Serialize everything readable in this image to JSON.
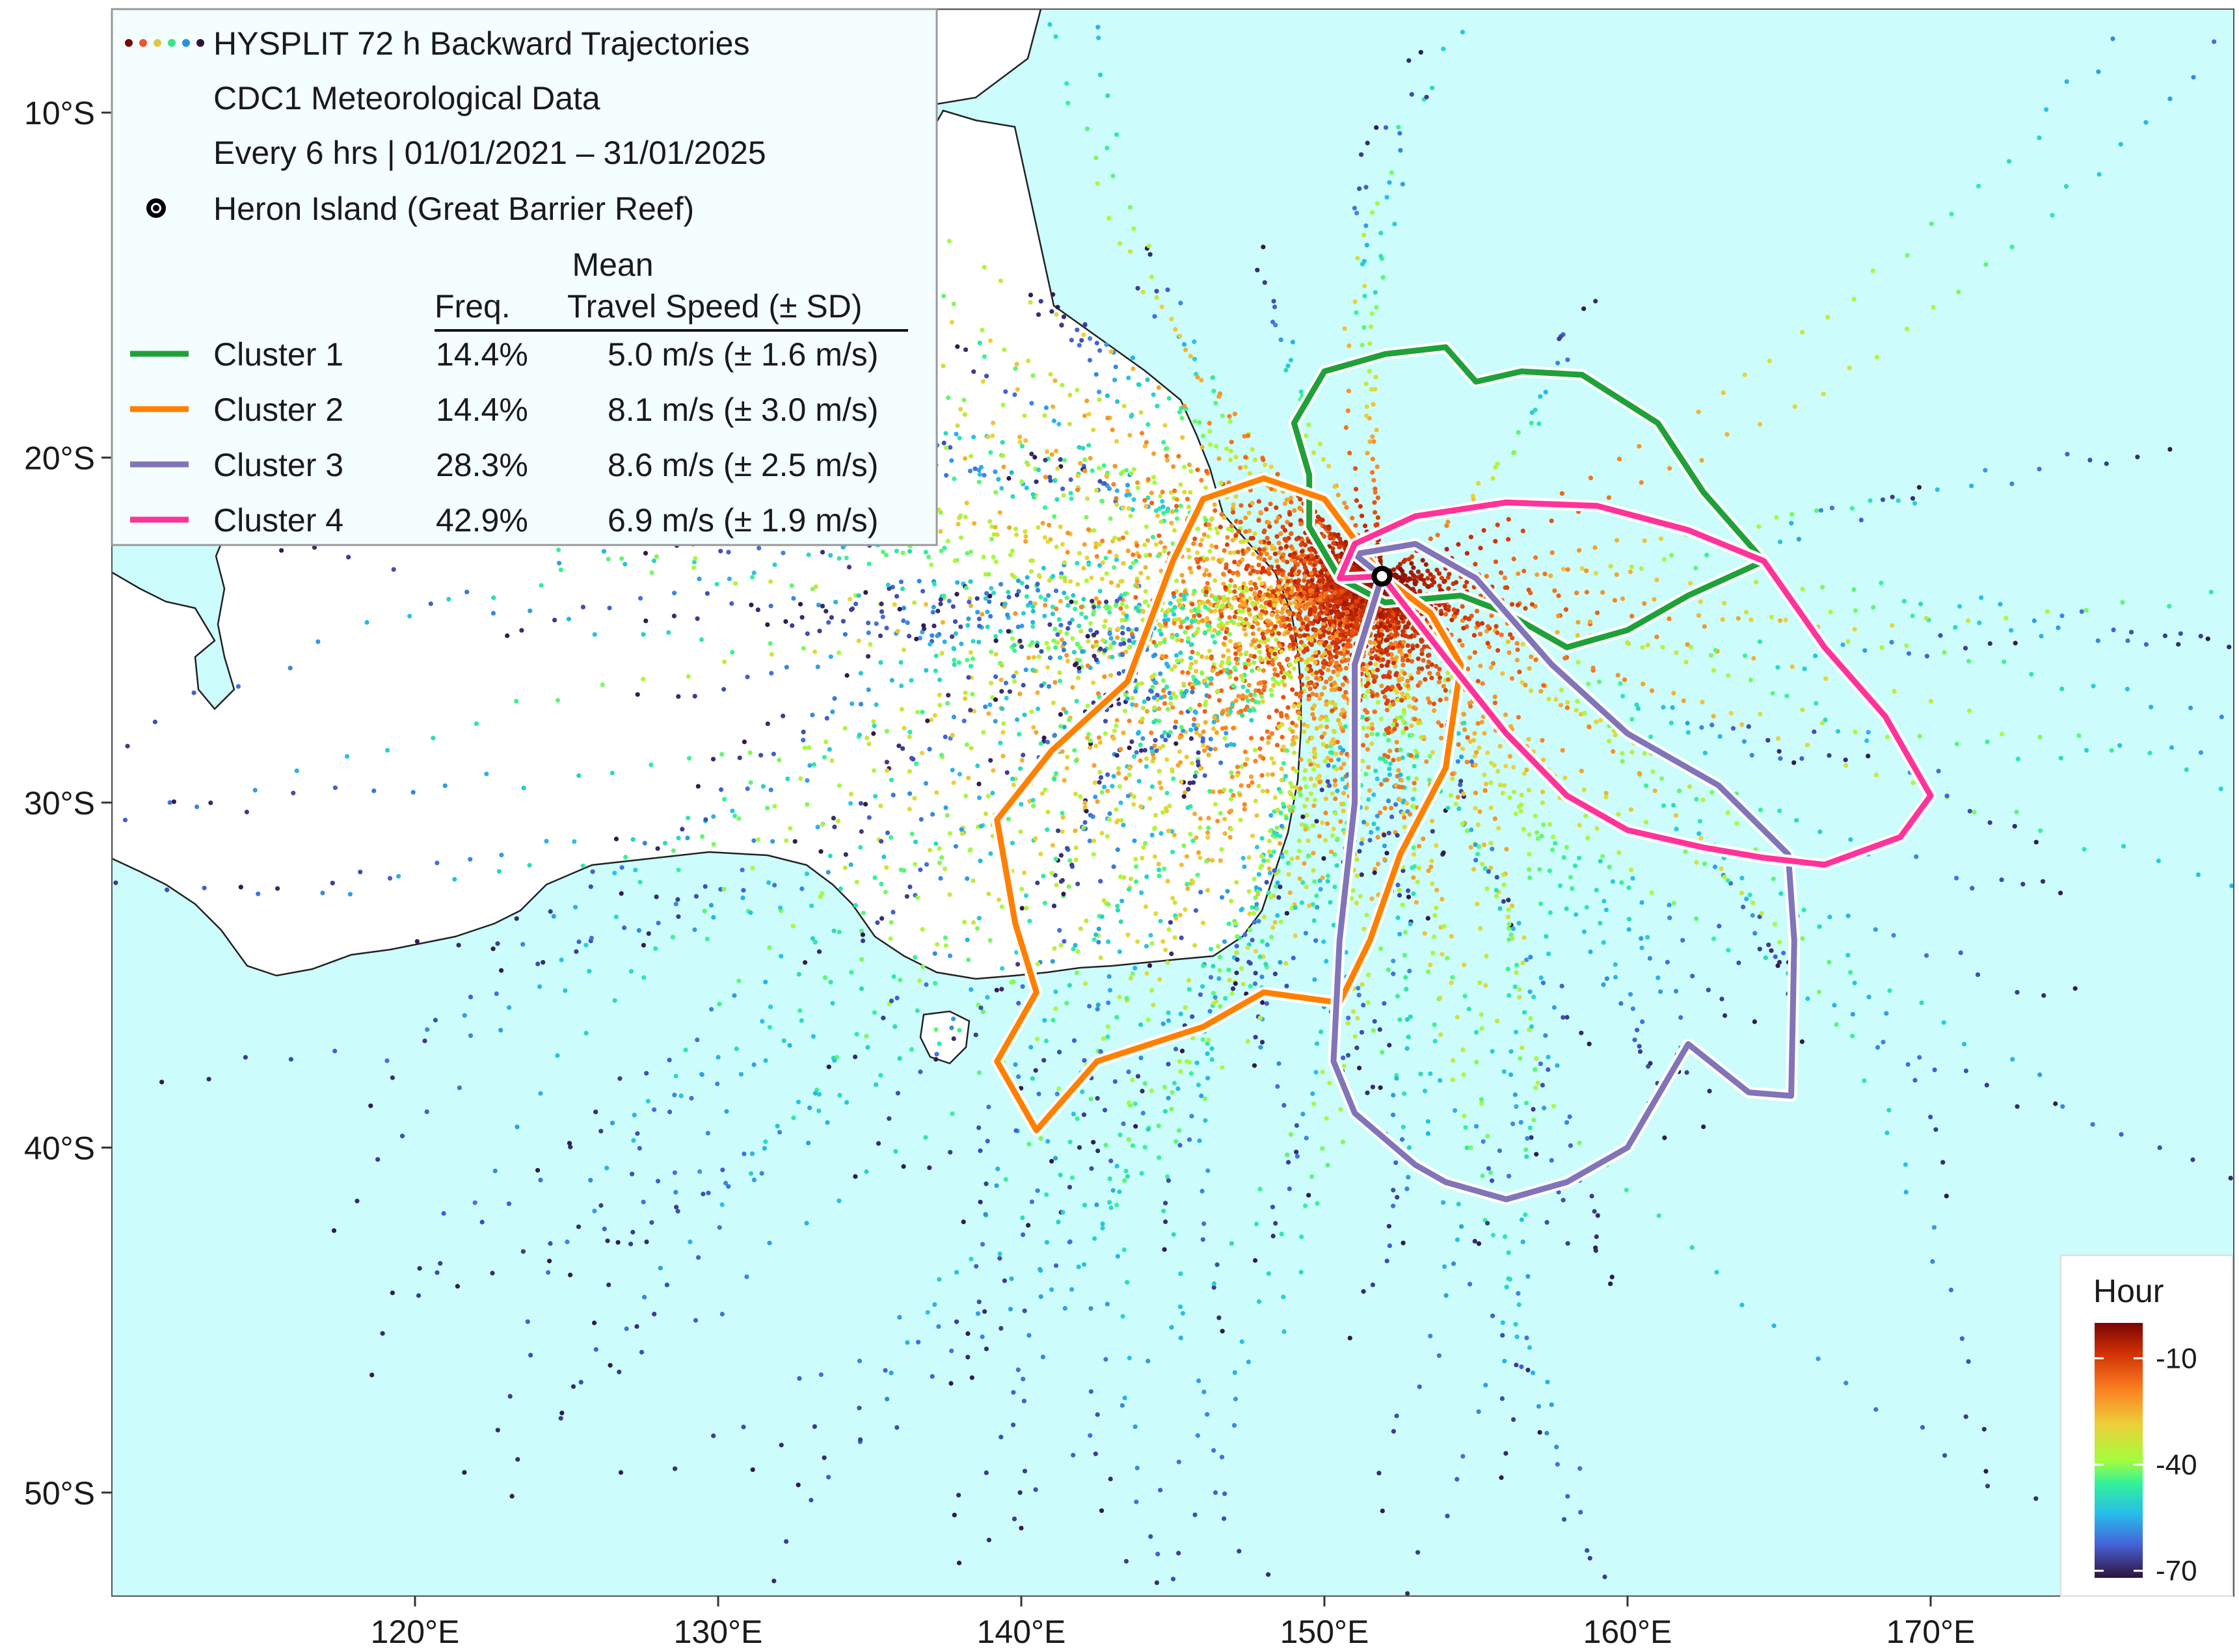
{
  "title": "HYSPLIT 72 h Backward Trajectories",
  "subtitle_1": "CDC1 Meteorological Data",
  "subtitle_2": "Every 6 hrs | 01/01/2021 – 31/01/2025",
  "site_label": "Heron Island (Great Barrier Reef)",
  "site": {
    "lon": 151.9,
    "lat": -23.44
  },
  "table_header": {
    "freq": "Freq.",
    "speed_line1": "Mean",
    "speed_line2": "Travel Speed (± SD)"
  },
  "colors": {
    "ocean": "#ccfcfc",
    "land": "#ffffff",
    "cluster1": "#1fa13a",
    "cluster2": "#ff8000",
    "cluster3": "#8075b8",
    "cluster4": "#ff3399"
  },
  "clusters": [
    {
      "name": "Cluster 1",
      "freq": "14.4%",
      "speed": "5.0 m/s (± 1.6 m/s)",
      "color": "#1fa13a"
    },
    {
      "name": "Cluster 2",
      "freq": "14.4%",
      "speed": "8.1 m/s (± 3.0 m/s)",
      "color": "#ff8000"
    },
    {
      "name": "Cluster 3",
      "freq": "28.3%",
      "speed": "8.6 m/s (± 2.5 m/s)",
      "color": "#8075b8"
    },
    {
      "name": "Cluster 4",
      "freq": "42.9%",
      "speed": "6.9 m/s (± 1.9 m/s)",
      "color": "#ff3399"
    }
  ],
  "colorbar": {
    "title": "Hour",
    "ticks": [
      "-10",
      "-40",
      "-70"
    ],
    "tick_values": [
      -10,
      -40,
      -70
    ],
    "range": [
      -72,
      0
    ]
  },
  "axes": {
    "lon_range": [
      110,
      180
    ],
    "lat_range": [
      -53,
      -7
    ],
    "x_ticks": [
      "120°E",
      "130°E",
      "140°E",
      "150°E",
      "160°E",
      "170°E"
    ],
    "x_tick_values": [
      120,
      130,
      140,
      150,
      160,
      170
    ],
    "y_ticks": [
      "10°S",
      "20°S",
      "30°S",
      "40°S",
      "50°S"
    ],
    "y_tick_values": [
      -10,
      -20,
      -30,
      -40,
      -50
    ]
  },
  "cluster_paths": [
    [
      [
        149,
        -19
      ],
      [
        150,
        -17.5
      ],
      [
        152,
        -17
      ],
      [
        154,
        -16.8
      ],
      [
        155,
        -17.8
      ],
      [
        156.5,
        -17.5
      ],
      [
        158.5,
        -17.6
      ],
      [
        161,
        -19
      ],
      [
        162.5,
        -21
      ],
      [
        164.5,
        -23
      ],
      [
        162,
        -24
      ],
      [
        160,
        -25
      ],
      [
        158,
        -25.5
      ],
      [
        156,
        -24.5
      ],
      [
        154.5,
        -24
      ],
      [
        152,
        -24.2
      ],
      [
        150.5,
        -23.5
      ],
      [
        149.5,
        -22
      ],
      [
        149.5,
        -20.5
      ],
      [
        149,
        -19
      ]
    ],
    [
      [
        151.9,
        -23.44
      ],
      [
        150,
        -21.2
      ],
      [
        148,
        -20.6
      ],
      [
        146,
        -21.2
      ],
      [
        145,
        -23
      ],
      [
        143.5,
        -26.5
      ],
      [
        141,
        -28.5
      ],
      [
        139.2,
        -30.5
      ],
      [
        139.8,
        -33.5
      ],
      [
        140.5,
        -35.5
      ],
      [
        139.2,
        -37.5
      ],
      [
        140.5,
        -39.5
      ],
      [
        142.5,
        -37.5
      ],
      [
        146,
        -36.5
      ],
      [
        148,
        -35.5
      ],
      [
        150.5,
        -35.8
      ],
      [
        151.5,
        -34
      ],
      [
        152.5,
        -31.5
      ],
      [
        154,
        -29
      ],
      [
        154.5,
        -26
      ],
      [
        153.5,
        -24.5
      ],
      [
        151.9,
        -23.44
      ]
    ],
    [
      [
        151.9,
        -23.44
      ],
      [
        151,
        -22.8
      ],
      [
        153,
        -22.5
      ],
      [
        155,
        -23.5
      ],
      [
        157.5,
        -26
      ],
      [
        160,
        -28
      ],
      [
        163,
        -29.5
      ],
      [
        165.3,
        -31.5
      ],
      [
        165.5,
        -34
      ],
      [
        165.4,
        -38.5
      ],
      [
        164,
        -38.4
      ],
      [
        162,
        -37
      ],
      [
        160,
        -40
      ],
      [
        158,
        -41
      ],
      [
        156,
        -41.5
      ],
      [
        154,
        -41
      ],
      [
        153,
        -40.5
      ],
      [
        151,
        -39
      ],
      [
        150.3,
        -37.5
      ],
      [
        150.5,
        -34
      ],
      [
        151,
        -30
      ],
      [
        151,
        -26
      ],
      [
        151.9,
        -23.44
      ]
    ],
    [
      [
        151.9,
        -23.44
      ],
      [
        150.5,
        -23.5
      ],
      [
        151,
        -22.5
      ],
      [
        153,
        -21.7
      ],
      [
        156,
        -21.3
      ],
      [
        159,
        -21.4
      ],
      [
        162,
        -22.1
      ],
      [
        164.5,
        -23
      ],
      [
        166.5,
        -25.5
      ],
      [
        168.5,
        -27.5
      ],
      [
        170,
        -29.8
      ],
      [
        169,
        -31
      ],
      [
        166.5,
        -31.8
      ],
      [
        164.5,
        -31.6
      ],
      [
        162.5,
        -31.3
      ],
      [
        160,
        -30.8
      ],
      [
        158,
        -29.8
      ],
      [
        156,
        -28
      ],
      [
        154,
        -25.8
      ],
      [
        151.9,
        -23.44
      ]
    ]
  ]
}
